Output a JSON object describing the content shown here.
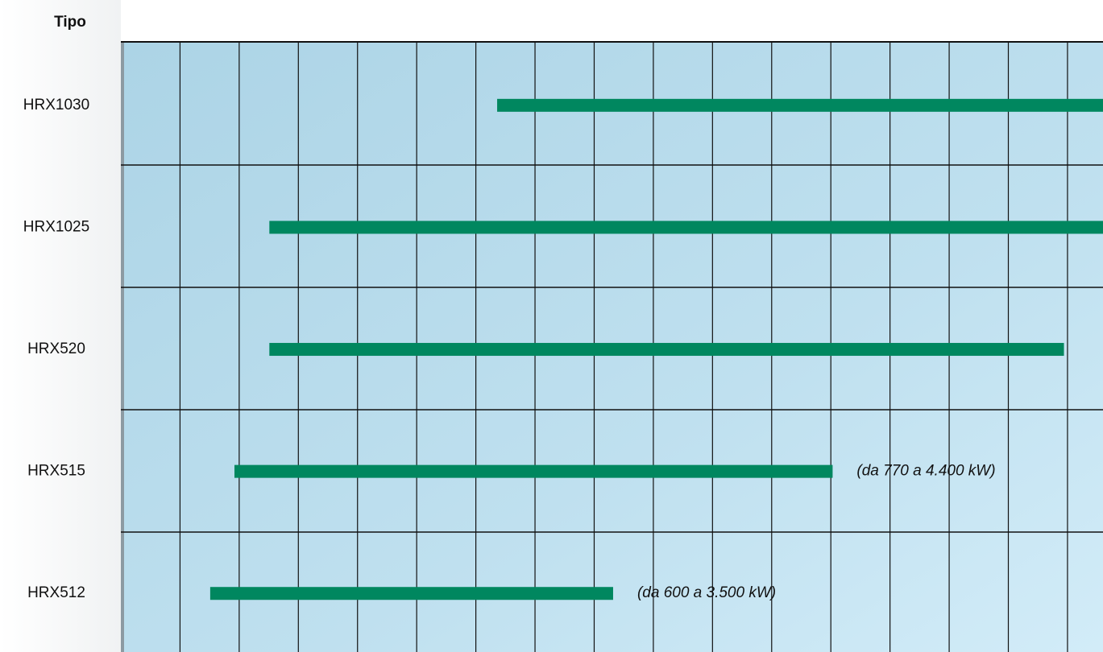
{
  "chart_data": {
    "type": "range_bar",
    "title": "Tipo",
    "categories": [
      "HRX1030",
      "HRX1025",
      "HRX520",
      "HRX515",
      "HRX512"
    ],
    "series": [
      {
        "color": "#00875f",
        "start": [
          6.36,
          2.51,
          2.51,
          1.92,
          1.51
        ],
        "end": [
          16.6,
          16.6,
          15.94,
          12.03,
          8.32
        ]
      }
    ],
    "annotations": [
      null,
      null,
      null,
      "(da 770 a 4.400 kW)",
      "(da 600 a 3.500 kW)"
    ],
    "xlim": [
      0,
      16.6
    ],
    "xticks": [
      0,
      1,
      2,
      3,
      4,
      5,
      6,
      7,
      8,
      9,
      10,
      11,
      12,
      13,
      14,
      15,
      16
    ],
    "grid": true
  }
}
